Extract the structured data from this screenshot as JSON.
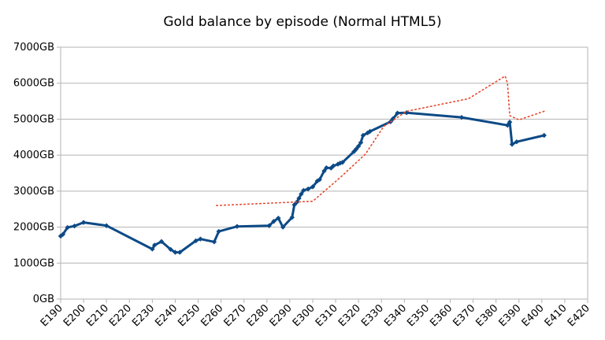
{
  "chart_data": {
    "type": "line",
    "title": "Gold balance by episode (Normal HTML5)",
    "xlabel": "",
    "ylabel": "",
    "xlim": [
      190,
      420
    ],
    "ylim": [
      0,
      7000
    ],
    "x_ticks": [
      190,
      200,
      210,
      220,
      230,
      240,
      250,
      260,
      270,
      280,
      290,
      300,
      310,
      320,
      330,
      340,
      350,
      360,
      370,
      380,
      390,
      400,
      410,
      420
    ],
    "x_tick_labels": [
      "E190",
      "E200",
      "E210",
      "E220",
      "E230",
      "E240",
      "E250",
      "E260",
      "E270",
      "E280",
      "E290",
      "E300",
      "E310",
      "E320",
      "E330",
      "E340",
      "E350",
      "E360",
      "E370",
      "E380",
      "E390",
      "E400",
      "E410",
      "E420"
    ],
    "y_ticks": [
      0,
      1000,
      2000,
      3000,
      4000,
      5000,
      6000,
      7000
    ],
    "y_tick_labels": [
      "0GB",
      "1000GB",
      "2000GB",
      "3000GB",
      "4000GB",
      "5000GB",
      "6000GB",
      "7000GB"
    ],
    "grid": true,
    "legend": "none",
    "colors": {
      "main": "#0d4a86",
      "trend": "#e8452a",
      "grid": "#b3b3b3",
      "axis": "#b3b3b3"
    },
    "series": [
      {
        "style": "solid-with-markers",
        "x": [
          190,
          191,
          193,
          196,
          200,
          210,
          230,
          231,
          234,
          238,
          240,
          242,
          249,
          251,
          257,
          259,
          267,
          281,
          283,
          285,
          287,
          291,
          292,
          293,
          294,
          295,
          296,
          298,
          300,
          302,
          303,
          305,
          306,
          308,
          309,
          311,
          312,
          313,
          318,
          319,
          320,
          321,
          322,
          324,
          325,
          334,
          335,
          337,
          341,
          365,
          385,
          386,
          387,
          389,
          401
        ],
        "y": [
          1750,
          1800,
          1990,
          2030,
          2130,
          2040,
          1390,
          1500,
          1600,
          1380,
          1300,
          1300,
          1620,
          1670,
          1590,
          1880,
          2020,
          2040,
          2160,
          2250,
          2000,
          2270,
          2620,
          2690,
          2800,
          2920,
          3020,
          3060,
          3120,
          3280,
          3320,
          3560,
          3650,
          3640,
          3700,
          3750,
          3780,
          3800,
          4100,
          4170,
          4250,
          4350,
          4550,
          4620,
          4660,
          4930,
          5010,
          5170,
          5180,
          5050,
          4830,
          4920,
          4300,
          4370,
          4550
        ]
      },
      {
        "style": "dotted-trend",
        "x": [
          258,
          300,
          312,
          323,
          331,
          341,
          368,
          384,
          385,
          386,
          390,
          401
        ],
        "y": [
          2600,
          2720,
          3380,
          4030,
          4800,
          5220,
          5570,
          6200,
          6000,
          5100,
          4980,
          5220
        ]
      }
    ]
  }
}
